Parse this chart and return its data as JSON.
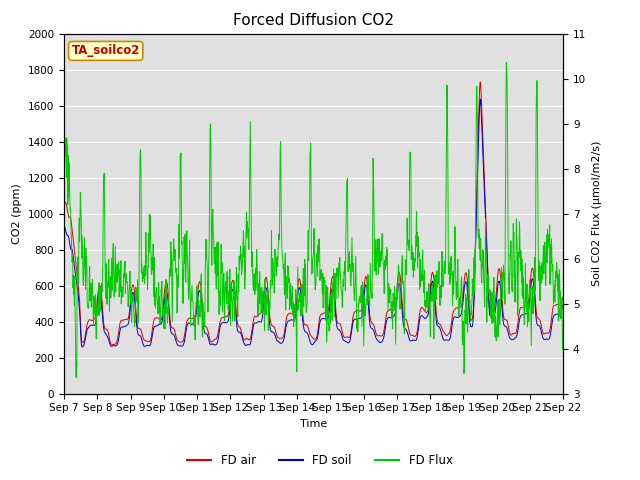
{
  "title": "Forced Diffusion CO2",
  "xlabel": "Time",
  "ylabel_left": "CO2 (ppm)",
  "ylabel_right": "Soil CO2 Flux (μmol/m2/s)",
  "annotation": "TA_soilco2",
  "ylim_left": [
    0,
    2000
  ],
  "ylim_right": [
    3.0,
    11.0
  ],
  "yticks_left": [
    0,
    200,
    400,
    600,
    800,
    1000,
    1200,
    1400,
    1600,
    1800,
    2000
  ],
  "yticks_right": [
    3.0,
    4.0,
    5.0,
    6.0,
    7.0,
    8.0,
    9.0,
    10.0,
    11.0
  ],
  "xtick_labels": [
    "Sep 7",
    "Sep 8",
    "Sep 9",
    "Sep 10",
    "Sep 11",
    "Sep 12",
    "Sep 13",
    "Sep 14",
    "Sep 15",
    "Sep 16",
    "Sep 17",
    "Sep 18",
    "Sep 19",
    "Sep 20",
    "Sep 21",
    "Sep 22"
  ],
  "color_air": "#dd0000",
  "color_soil": "#0000cc",
  "color_flux": "#00cc00",
  "bg_color": "#e0e0e0",
  "legend_labels": [
    "FD air",
    "FD soil",
    "FD Flux"
  ],
  "title_fontsize": 11,
  "axis_fontsize": 8,
  "tick_fontsize": 7.5
}
